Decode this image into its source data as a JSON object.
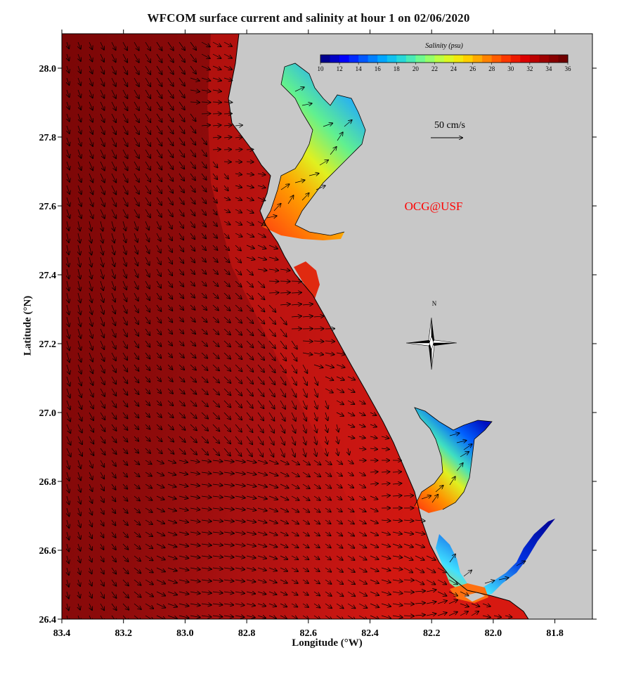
{
  "title": "WFCOM surface current and salinity at hour 1 on 02/06/2020",
  "xlabel": "Longitude (°W)",
  "ylabel": "Latitude (°N)",
  "x_ticks": [
    "83.4",
    "83.2",
    "83.0",
    "82.8",
    "82.6",
    "82.4",
    "82.2",
    "82.0",
    "81.8"
  ],
  "y_ticks": [
    "28.0",
    "27.8",
    "27.6",
    "27.4",
    "27.2",
    "27.0",
    "26.8",
    "26.6",
    "26.4"
  ],
  "colorbar": {
    "title": "Salinity (psu)",
    "ticks": [
      "10",
      "12",
      "14",
      "16",
      "18",
      "20",
      "22",
      "24",
      "26",
      "28",
      "30",
      "32",
      "34",
      "36"
    ],
    "colors": [
      "#00008f",
      "#0000ff",
      "#0060ff",
      "#00b0ff",
      "#30e0d0",
      "#80ff80",
      "#d0ff30",
      "#ffe000",
      "#ff9000",
      "#ff4000",
      "#e00000",
      "#a00000",
      "#700000"
    ]
  },
  "scale_label": "50 cm/s",
  "watermark": "OCG@USF",
  "compass_label": "N",
  "colors": {
    "land": "#c8c8c8",
    "ocean_deep": "#8a0a0a",
    "ocean_mid": "#b01010",
    "ocean_coast": "#dd1a10",
    "watermark": "#ff0000"
  }
}
